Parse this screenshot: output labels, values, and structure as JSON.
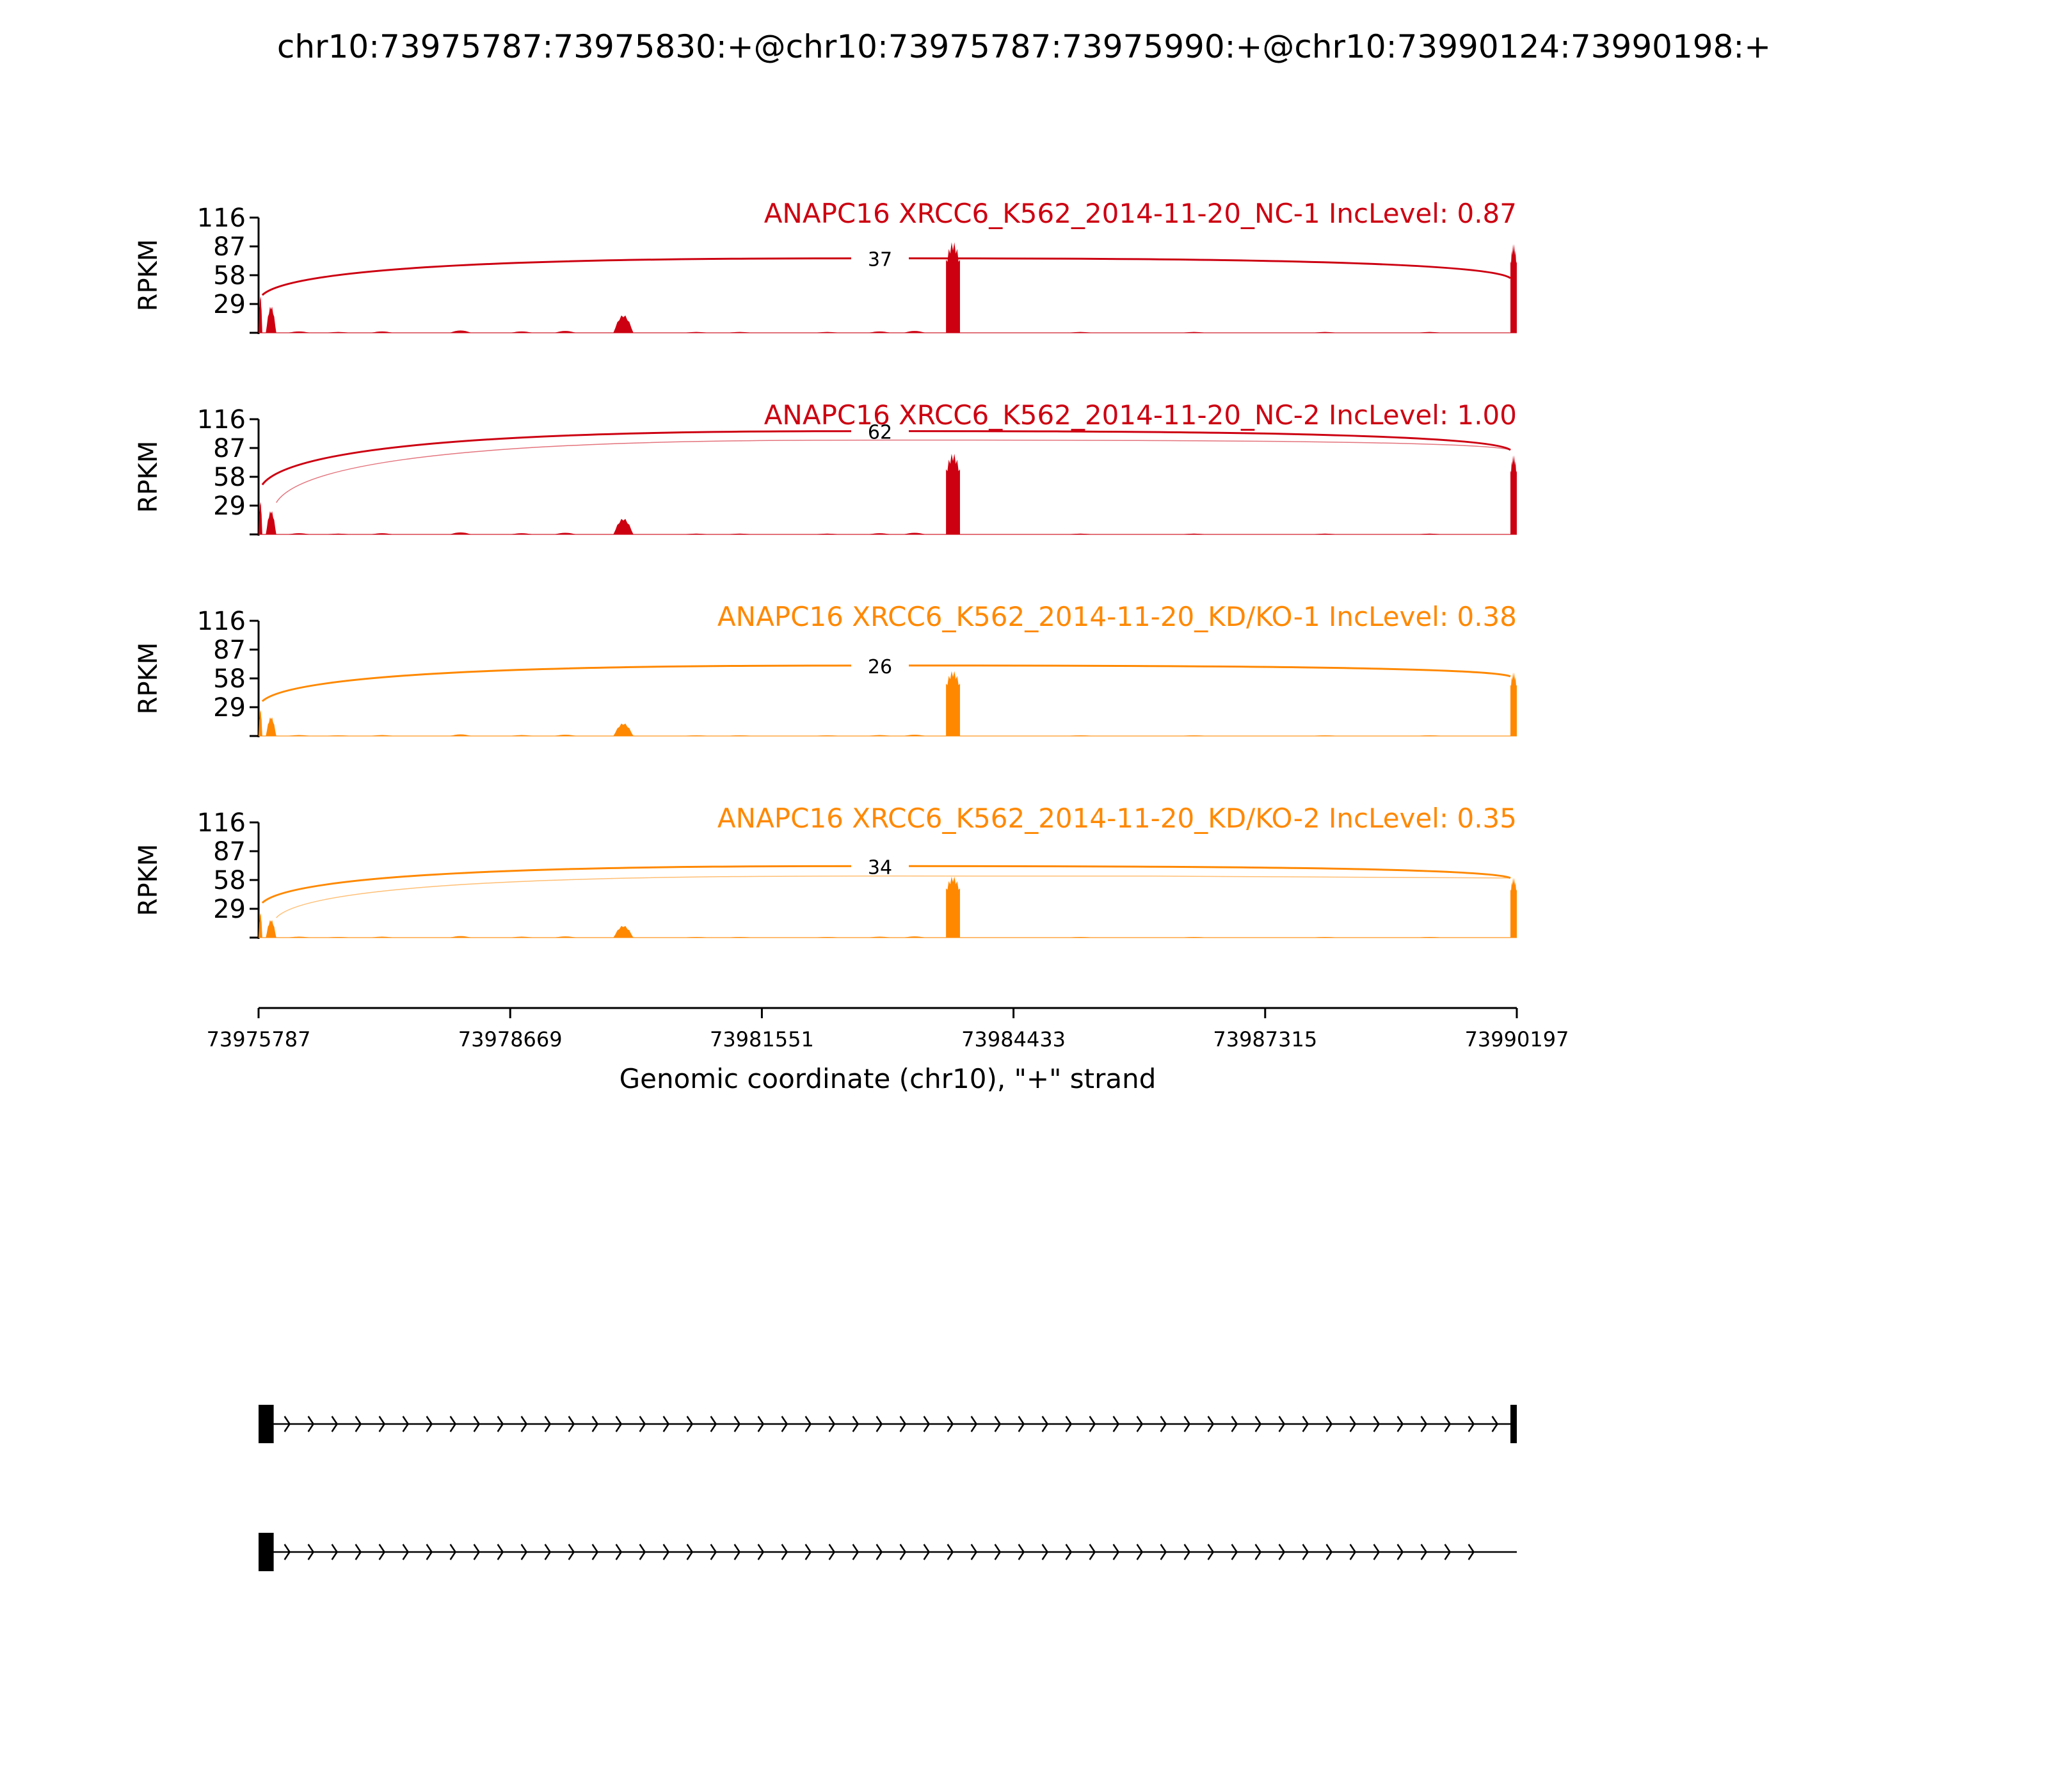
{
  "title": "chr10:73975787:73975830:+@chr10:73975787:73975990:+@chr10:73990124:73990198:+",
  "chart_data": {
    "type": "area",
    "genome_range": [
      73975787,
      73990197
    ],
    "y_axis": {
      "label": "RPKM",
      "ticks": [
        "116",
        "87",
        "58",
        "29"
      ],
      "ylim": [
        0,
        116
      ]
    },
    "x_axis": {
      "label": "Genomic coordinate (chr10), \"+\" strand",
      "ticks": [
        73975787,
        73978669,
        73981551,
        73984433,
        73987315,
        73990197
      ],
      "tick_labels": [
        "73975787",
        "73978669",
        "73981551",
        "73984433",
        "73987315",
        "73990197"
      ]
    },
    "coverage_peaks": [
      {
        "start": 73975787,
        "end": 73975830,
        "rel": 0.42
      },
      {
        "start": 73975870,
        "end": 73975990,
        "rel": 0.3
      },
      {
        "start": 73979850,
        "end": 73980080,
        "rel": 0.2
      },
      {
        "start": 73983660,
        "end": 73983820,
        "rel": 1.0
      },
      {
        "start": 73990124,
        "end": 73990197,
        "rel": 0.98
      }
    ],
    "background_bumps": [
      {
        "pos": 73976250,
        "rel": 0.03
      },
      {
        "pos": 73976700,
        "rel": 0.02
      },
      {
        "pos": 73977200,
        "rel": 0.03
      },
      {
        "pos": 73978100,
        "rel": 0.05
      },
      {
        "pos": 73978800,
        "rel": 0.03
      },
      {
        "pos": 73979300,
        "rel": 0.04
      },
      {
        "pos": 73980800,
        "rel": 0.02
      },
      {
        "pos": 73981300,
        "rel": 0.02
      },
      {
        "pos": 73982300,
        "rel": 0.02
      },
      {
        "pos": 73982900,
        "rel": 0.03
      },
      {
        "pos": 73983300,
        "rel": 0.04
      },
      {
        "pos": 73985200,
        "rel": 0.02
      },
      {
        "pos": 73986500,
        "rel": 0.02
      },
      {
        "pos": 73988000,
        "rel": 0.02
      },
      {
        "pos": 73989200,
        "rel": 0.02
      }
    ],
    "tracks": [
      {
        "label": "ANAPC16 XRCC6_K562_2014-11-20_NC-1 IncLevel: 0.87",
        "color": "#cc0011",
        "peak_rpkm": 92,
        "junctions": [
          {
            "start": 73975830,
            "end": 73990124,
            "count": "37",
            "mid_rpkm": 75,
            "start_rpkm": 38,
            "end_rpkm": 55,
            "thick": true
          }
        ]
      },
      {
        "label": "ANAPC16 XRCC6_K562_2014-11-20_NC-2 IncLevel: 1.00",
        "color": "#cc0011",
        "peak_rpkm": 82,
        "junctions": [
          {
            "start": 73975830,
            "end": 73990124,
            "count": "62",
            "mid_rpkm": 104,
            "start_rpkm": 50,
            "end_rpkm": 85,
            "thick": true
          },
          {
            "start": 73975990,
            "end": 73990124,
            "count": "",
            "mid_rpkm": 95,
            "start_rpkm": 32,
            "end_rpkm": 85,
            "thick": false
          }
        ]
      },
      {
        "label": "ANAPC16 XRCC6_K562_2014-11-20_KD/KO-1 IncLevel: 0.38",
        "color": "#ff8800",
        "peak_rpkm": 66,
        "junctions": [
          {
            "start": 73975830,
            "end": 73990124,
            "count": "26",
            "mid_rpkm": 71,
            "start_rpkm": 35,
            "end_rpkm": 60,
            "thick": true
          }
        ]
      },
      {
        "label": "ANAPC16 XRCC6_K562_2014-11-20_KD/KO-2 IncLevel: 0.35",
        "color": "#ff8800",
        "peak_rpkm": 62,
        "junctions": [
          {
            "start": 73975830,
            "end": 73990124,
            "count": "34",
            "mid_rpkm": 72,
            "start_rpkm": 35,
            "end_rpkm": 60,
            "thick": true
          },
          {
            "start": 73975990,
            "end": 73990124,
            "count": "",
            "mid_rpkm": 62,
            "start_rpkm": 20,
            "end_rpkm": 60,
            "thick": false
          }
        ]
      }
    ],
    "isoforms": [
      {
        "exons": [
          [
            73975787,
            73975960
          ],
          [
            73990124,
            73990197
          ]
        ],
        "line_end": 73990197
      },
      {
        "exons": [
          [
            73975787,
            73975960
          ]
        ],
        "line_end": 73990197
      }
    ]
  }
}
